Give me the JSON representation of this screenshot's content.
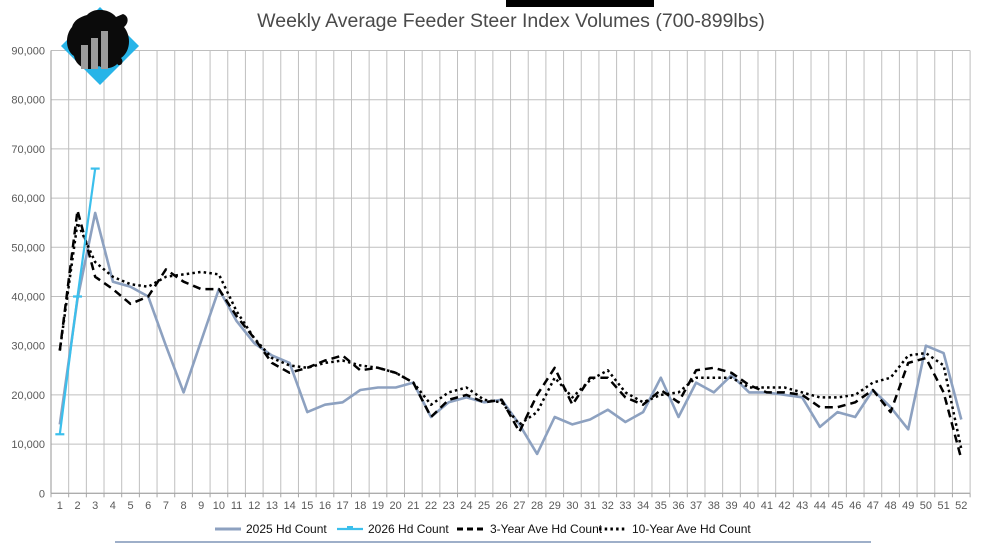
{
  "title": "Weekly Average Feeder Steer Index Volumes (700-899lbs)",
  "colors": {
    "series_2025": "#8DA1C0",
    "series_2026": "#3BBFEC",
    "series_3yr": "#000000",
    "series_10yr": "#000000",
    "gridline": "#BFBFBF",
    "axis_line": "#A6A6A6",
    "axis_text": "#595959",
    "title_text": "#4A4A4A",
    "logo_cyan": "#27B4E8",
    "logo_black": "#0B0B0B",
    "logo_bars": "#9C9C9C"
  },
  "y_axis": {
    "tick_labels": [
      "90,000",
      "80,000",
      "70,000",
      "60,000",
      "50,000",
      "40,000",
      "30,000",
      "20,000",
      "10,000",
      "0"
    ],
    "min": 0,
    "max": 90000,
    "step": 10000
  },
  "x_axis": {
    "tick_labels": [
      "1",
      "2",
      "3",
      "4",
      "5",
      "6",
      "7",
      "8",
      "9",
      "10",
      "11",
      "12",
      "13",
      "14",
      "15",
      "16",
      "17",
      "18",
      "19",
      "20",
      "21",
      "22",
      "23",
      "24",
      "25",
      "26",
      "27",
      "28",
      "29",
      "30",
      "31",
      "32",
      "33",
      "34",
      "35",
      "36",
      "37",
      "38",
      "39",
      "40",
      "41",
      "42",
      "43",
      "44",
      "45",
      "46",
      "47",
      "48",
      "49",
      "50",
      "51",
      "52"
    ]
  },
  "legend": {
    "items": [
      {
        "label": "2025 Hd Count",
        "swatch": "solid-bluegray-line"
      },
      {
        "label": "2026 Hd Count",
        "swatch": "solid-cyan-line-with-tick"
      },
      {
        "label": "3-Year Ave Hd Count",
        "swatch": "dashed-black-line"
      },
      {
        "label": "10-Year Ave Hd Count",
        "swatch": "dotted-black-line"
      }
    ]
  },
  "chart_data": {
    "type": "line",
    "title": "Weekly Average Feeder Steer Index Volumes (700-899lbs)",
    "x": [
      1,
      2,
      3,
      4,
      5,
      6,
      7,
      8,
      9,
      10,
      11,
      12,
      13,
      14,
      15,
      16,
      17,
      18,
      19,
      20,
      21,
      22,
      23,
      24,
      25,
      26,
      27,
      28,
      29,
      30,
      31,
      32,
      33,
      34,
      35,
      36,
      37,
      38,
      39,
      40,
      41,
      42,
      43,
      44,
      45,
      46,
      47,
      48,
      49,
      50,
      51,
      52
    ],
    "ylim": [
      0,
      90000
    ],
    "ytick_step": 10000,
    "grid": true,
    "legend_position": "bottom",
    "series": [
      {
        "name": "2025 Hd Count",
        "style": "solid",
        "color": "#8DA1C0",
        "width": 2.6,
        "values": [
          14000,
          39500,
          57000,
          43000,
          42000,
          40000,
          30000,
          20500,
          31000,
          41500,
          35000,
          30500,
          28000,
          26500,
          16500,
          18000,
          18500,
          21000,
          21500,
          21500,
          22500,
          15500,
          18500,
          19500,
          18500,
          19000,
          14000,
          8000,
          15500,
          14000,
          15000,
          17000,
          14500,
          16500,
          23500,
          15500,
          22500,
          20500,
          24000,
          20500,
          20500,
          20000,
          19500,
          13500,
          16500,
          15500,
          21000,
          17500,
          13000,
          30000,
          28500,
          15000
        ]
      },
      {
        "name": "2026 Hd Count",
        "style": "solid",
        "markers": "tick",
        "color": "#3BBFEC",
        "width": 2.2,
        "x": [
          1,
          2,
          3
        ],
        "values": [
          12000,
          40000,
          66000
        ]
      },
      {
        "name": "3-Year Ave Hd Count",
        "style": "dashed",
        "color": "#000000",
        "width": 2.5,
        "values": [
          29000,
          57500,
          44000,
          41500,
          38500,
          40000,
          45500,
          43000,
          41500,
          41500,
          36000,
          31500,
          26500,
          24500,
          25500,
          27000,
          28000,
          25000,
          25500,
          24500,
          22500,
          15500,
          19000,
          20000,
          18500,
          19000,
          12500,
          20000,
          25500,
          18000,
          23500,
          23500,
          19500,
          18000,
          21000,
          18500,
          25000,
          25500,
          24500,
          22000,
          20500,
          20500,
          20000,
          17500,
          17500,
          18500,
          21000,
          16500,
          26500,
          27500,
          20500,
          7000
        ]
      },
      {
        "name": "10-Year Ave Hd Count",
        "style": "dotted",
        "color": "#000000",
        "width": 2.5,
        "values": [
          29000,
          55000,
          47000,
          44000,
          42500,
          42000,
          44000,
          44500,
          45000,
          44500,
          37000,
          31500,
          27500,
          26000,
          25500,
          26500,
          27000,
          26000,
          25500,
          24500,
          22500,
          18000,
          20500,
          21500,
          19000,
          18500,
          14000,
          16500,
          23500,
          19500,
          23000,
          25000,
          20500,
          18500,
          20000,
          20500,
          23500,
          23500,
          23500,
          21500,
          21500,
          21500,
          20500,
          19500,
          19500,
          20000,
          22500,
          23500,
          28000,
          28500,
          26000,
          9000
        ]
      }
    ]
  }
}
